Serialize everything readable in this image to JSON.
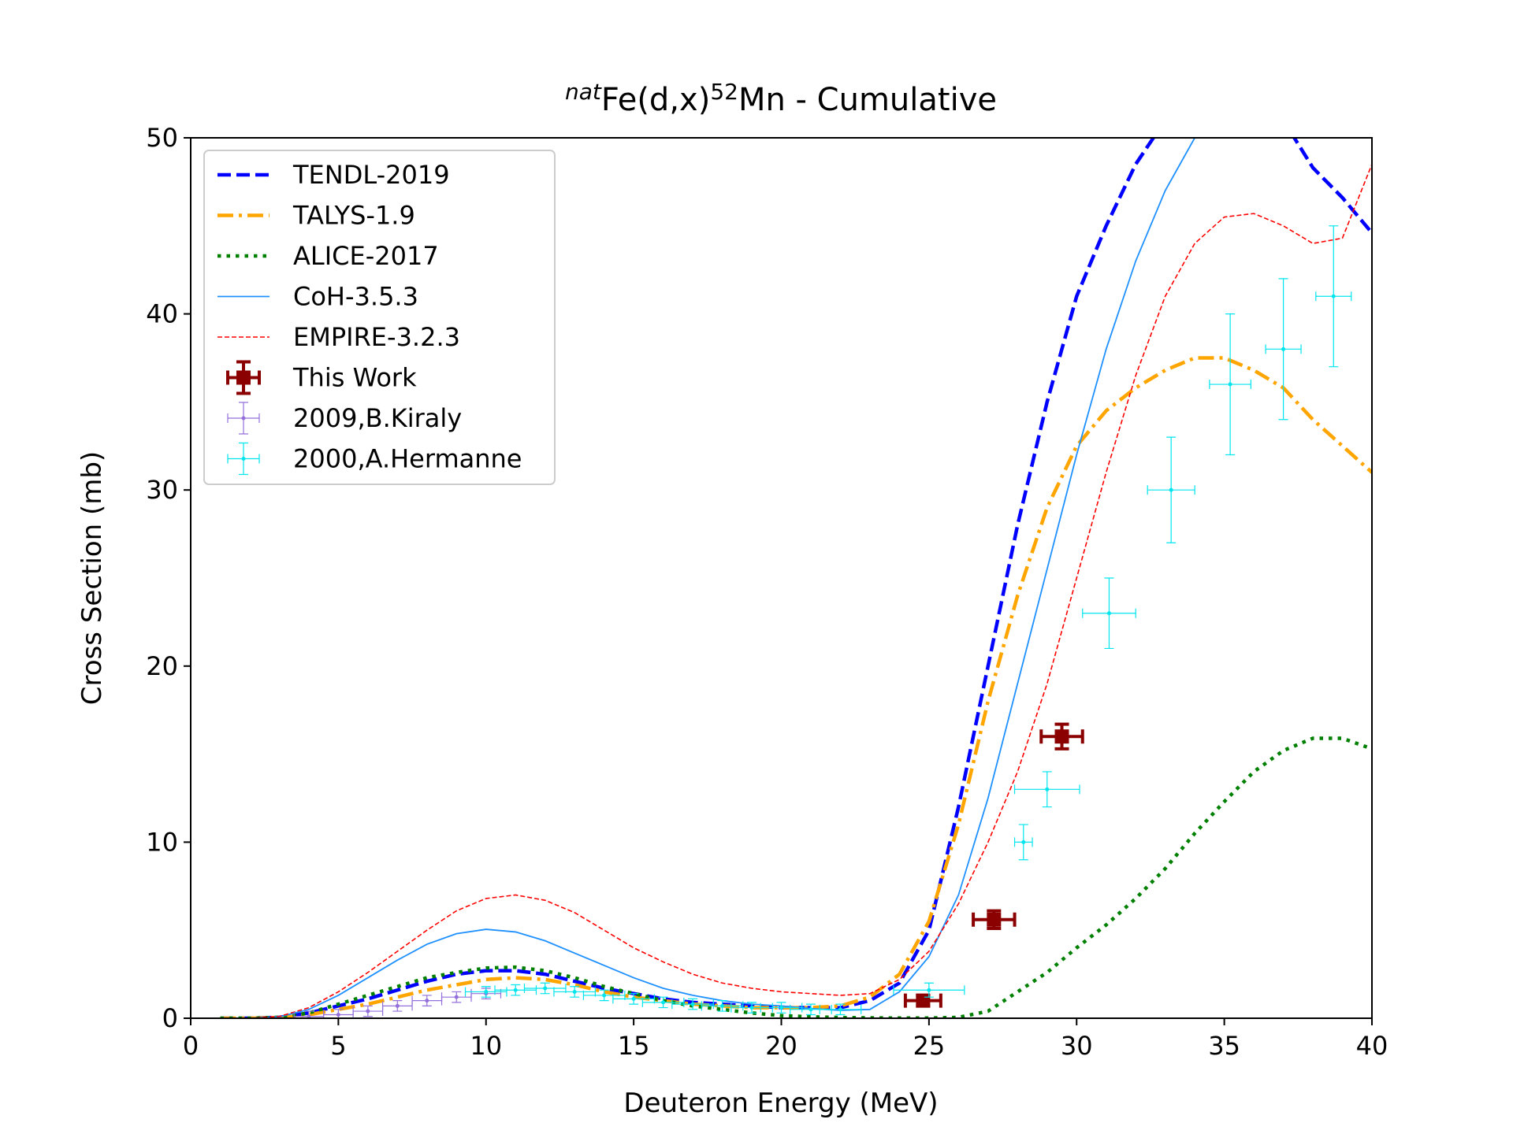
{
  "chart_data": {
    "type": "line",
    "title": [
      "nat",
      "Fe(d,x)",
      "52",
      "Mn - Cumulative"
    ],
    "x_label": "Deuteron Energy (MeV)",
    "y_label": "Cross Section (mb)",
    "xlim": [
      0,
      40
    ],
    "ylim": [
      0,
      50
    ],
    "xticks": [
      0,
      5,
      10,
      15,
      20,
      25,
      30,
      35,
      40
    ],
    "yticks": [
      0,
      10,
      20,
      30,
      40,
      50
    ],
    "grid": false,
    "legend": "upper left",
    "x": [
      1,
      2,
      3,
      4,
      5,
      6,
      7,
      8,
      9,
      10,
      11,
      12,
      13,
      14,
      15,
      16,
      17,
      18,
      19,
      20,
      21,
      22,
      23,
      24,
      25,
      26,
      27,
      28,
      29,
      30,
      31,
      32,
      33,
      34,
      35,
      36,
      37,
      38,
      39,
      40
    ],
    "series": [
      {
        "name": "TENDL-2019",
        "color": "#0000ff",
        "linestyle": "dashed",
        "values": [
          0,
          0,
          0.05,
          0.3,
          0.7,
          1.1,
          1.6,
          2.1,
          2.5,
          2.7,
          2.7,
          2.5,
          2.1,
          1.7,
          1.4,
          1.1,
          0.9,
          0.8,
          0.7,
          0.6,
          0.6,
          0.6,
          1.0,
          2.0,
          5.0,
          12,
          20,
          28,
          35,
          41,
          45,
          48.5,
          51,
          53,
          54,
          53,
          51,
          48.3,
          46.6,
          44.6
        ]
      },
      {
        "name": "TALYS-1.9",
        "color": "#ffa500",
        "linestyle": "dashdot",
        "values": [
          0,
          0,
          0.03,
          0.2,
          0.5,
          0.8,
          1.2,
          1.6,
          1.9,
          2.2,
          2.3,
          2.2,
          1.9,
          1.5,
          1.2,
          1.0,
          0.8,
          0.7,
          0.6,
          0.6,
          0.6,
          0.7,
          1.2,
          2.5,
          5.5,
          11,
          18,
          24,
          29,
          32.5,
          34.5,
          35.8,
          36.8,
          37.5,
          37.5,
          36.8,
          35.8,
          34,
          32.5,
          31
        ]
      },
      {
        "name": "ALICE-2017",
        "color": "#008000",
        "linestyle": "dotted",
        "values": [
          0,
          0,
          0.05,
          0.3,
          0.8,
          1.3,
          1.8,
          2.3,
          2.6,
          2.85,
          2.9,
          2.7,
          2.3,
          1.8,
          1.4,
          1.0,
          0.7,
          0.5,
          0.3,
          0.15,
          0.08,
          0.04,
          0.02,
          0.01,
          0.01,
          0.05,
          0.4,
          1.5,
          2.6,
          4,
          5.3,
          6.8,
          8.5,
          10.5,
          12.3,
          14,
          15.2,
          15.9,
          15.9,
          15.3
        ]
      },
      {
        "name": "CoH-3.5.3",
        "color": "#1e90ff",
        "linestyle": "solid",
        "values": [
          0,
          0,
          0.08,
          0.5,
          1.3,
          2.3,
          3.3,
          4.2,
          4.8,
          5.05,
          4.9,
          4.4,
          3.7,
          3.0,
          2.3,
          1.7,
          1.3,
          1.0,
          0.8,
          0.7,
          0.55,
          0.45,
          0.5,
          1.5,
          3.5,
          7,
          12.5,
          19,
          25.5,
          32,
          38,
          43,
          47,
          50,
          51.5,
          53,
          53.5,
          53.5,
          53,
          52.5
        ]
      },
      {
        "name": "EMPIRE-3.2.3",
        "color": "#ff0000",
        "linestyle": "finedash",
        "values": [
          0,
          0,
          0.1,
          0.6,
          1.5,
          2.6,
          3.8,
          5.0,
          6.1,
          6.8,
          7.0,
          6.7,
          6.0,
          5.0,
          4.0,
          3.2,
          2.5,
          2.0,
          1.7,
          1.5,
          1.4,
          1.3,
          1.4,
          2.2,
          3.8,
          6.5,
          10,
          14,
          19,
          25,
          31,
          36.5,
          41,
          44,
          45.5,
          45.7,
          45,
          44,
          44.3,
          48.5
        ]
      },
      {
        "name": "This Work",
        "color": "#8b0000",
        "kind": "errorbar",
        "heavy": true,
        "x": [
          24.8,
          27.2,
          29.5
        ],
        "values": [
          1,
          5.6,
          16
        ],
        "xerr": [
          0.6,
          0.7,
          0.7
        ],
        "yerr": [
          0.3,
          0.5,
          0.7
        ]
      },
      {
        "name": "2009,B.Kiraly",
        "color": "#9370db",
        "kind": "errorbar",
        "heavy": false,
        "x": [
          4,
          5,
          6,
          7,
          8,
          9,
          10
        ],
        "values": [
          0.1,
          0.2,
          0.4,
          0.7,
          1.0,
          1.2,
          1.4
        ],
        "xerr": [
          0.5,
          0.5,
          0.5,
          0.5,
          0.5,
          0.5,
          0.5
        ],
        "yerr": [
          0.3,
          0.3,
          0.3,
          0.3,
          0.3,
          0.3,
          0.3
        ]
      },
      {
        "name": "2000,A.Hermanne",
        "color": "#00e5ee",
        "kind": "errorbar",
        "heavy": false,
        "x": [
          10,
          11,
          12,
          13,
          14,
          15,
          16,
          17,
          18,
          19,
          20,
          21,
          22,
          25,
          28.2,
          29,
          31.1,
          33.2,
          35.2,
          37,
          38.7
        ],
        "values": [
          1.5,
          1.6,
          1.7,
          1.5,
          1.3,
          1.1,
          0.9,
          0.8,
          0.7,
          0.6,
          0.6,
          0.5,
          0.5,
          1.6,
          10,
          13,
          23,
          30,
          36,
          38,
          41
        ],
        "xerr": [
          0.7,
          0.7,
          0.7,
          0.7,
          0.7,
          0.7,
          0.7,
          0.7,
          0.7,
          0.7,
          0.7,
          0.7,
          0.7,
          1.2,
          0.3,
          1.1,
          0.9,
          0.8,
          0.7,
          0.6,
          0.6
        ],
        "yerr": [
          0.3,
          0.3,
          0.3,
          0.3,
          0.3,
          0.3,
          0.3,
          0.3,
          0.3,
          0.3,
          0.3,
          0.3,
          0.3,
          0.4,
          1,
          1,
          2,
          3,
          4,
          4,
          4
        ]
      }
    ]
  }
}
